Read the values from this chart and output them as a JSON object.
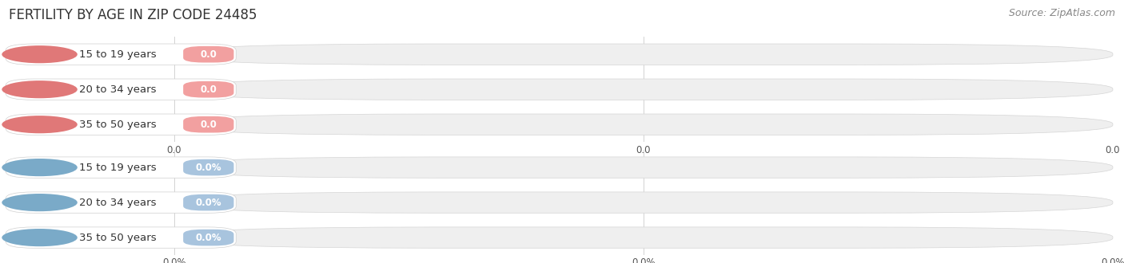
{
  "title": "FERTILITY BY AGE IN ZIP CODE 24485",
  "source": "Source: ZipAtlas.com",
  "categories": [
    "15 to 19 years",
    "20 to 34 years",
    "35 to 50 years"
  ],
  "values_count": [
    0.0,
    0.0,
    0.0
  ],
  "values_pct": [
    0.0,
    0.0,
    0.0
  ],
  "bar_color_count": "#f2a0a0",
  "bar_color_pct": "#a8c4de",
  "bar_bg_color": "#efefef",
  "circle_color_count": "#e07878",
  "circle_color_pct": "#7aaac8",
  "tick_labels_count": [
    "0.0",
    "0.0",
    "0.0"
  ],
  "tick_labels_pct": [
    "0.0%",
    "0.0%",
    "0.0%"
  ],
  "fig_width": 14.06,
  "fig_height": 3.3,
  "background_color": "#ffffff",
  "title_fontsize": 12,
  "label_fontsize": 9.5,
  "value_fontsize": 8.5,
  "source_fontsize": 9,
  "tick_fontsize": 8.5
}
